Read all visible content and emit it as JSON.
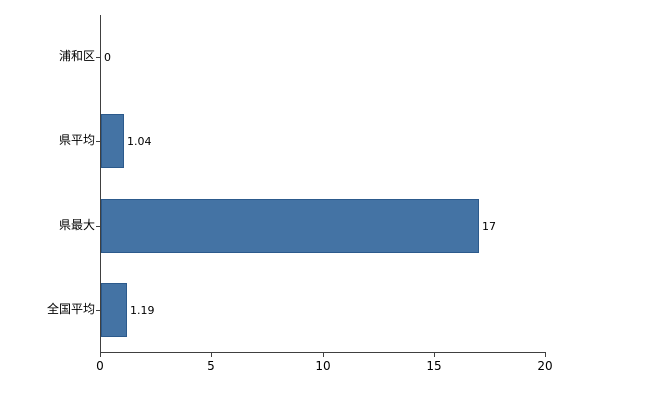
{
  "chart_data": {
    "type": "bar",
    "orientation": "horizontal",
    "title": "",
    "categories": [
      "浦和区",
      "県平均",
      "県最大",
      "全国平均"
    ],
    "values": [
      0,
      1.04,
      17,
      1.19
    ],
    "value_labels": [
      "0",
      "1.04",
      "17",
      "1.19"
    ],
    "xlim": [
      0,
      20
    ],
    "xticks": [
      0,
      5,
      10,
      15,
      20
    ],
    "xtick_labels": [
      "0",
      "5",
      "10",
      "15",
      "20"
    ],
    "grid": false,
    "legend_position": "none",
    "colors": {
      "bar_fill": "#4473a4",
      "bar_border": "#2c5a8c",
      "axis": "#404040",
      "text": "#000000",
      "background": "#ffffff"
    }
  }
}
